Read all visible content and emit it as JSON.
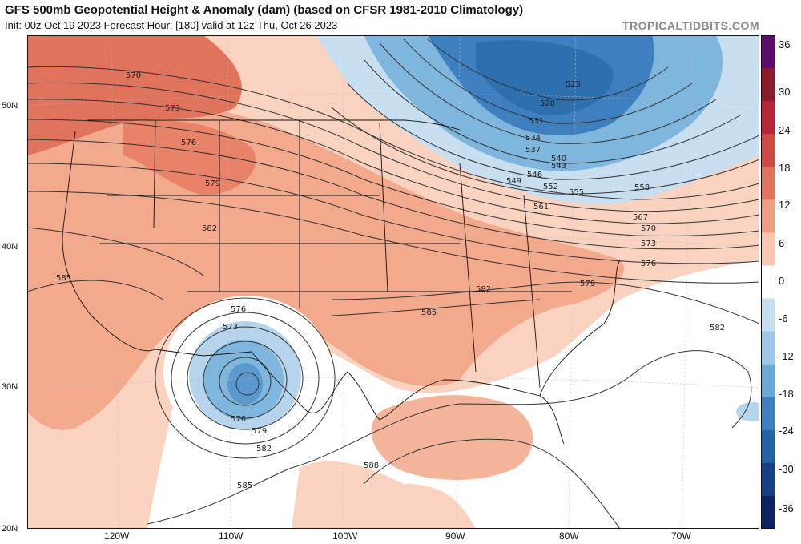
{
  "header": {
    "title": "GFS 500mb Geopotential Height & Anomaly (dam) (based on CFSR 1981-2010 Climatology)",
    "subtitle": "Init: 00z Oct 19 2023   Forecast Hour: [180]   valid at 12z Thu, Oct 26 2023",
    "credit": "TROPICALTIDBITS.COM"
  },
  "map": {
    "lat_labels": [
      "50N",
      "40N",
      "30N",
      "20N"
    ],
    "lon_labels": [
      "120W",
      "110W",
      "100W",
      "90W",
      "80W",
      "70W"
    ],
    "contour_labels": [
      "570",
      "573",
      "576",
      "579",
      "582",
      "585",
      "525",
      "528",
      "531",
      "534",
      "537",
      "540",
      "543",
      "546",
      "549",
      "552",
      "555",
      "558",
      "561",
      "567",
      "570",
      "573",
      "576",
      "579",
      "582",
      "585",
      "582",
      "576",
      "573",
      "576",
      "579",
      "582",
      "585",
      "588"
    ],
    "colors": {
      "warm_light": "#f9d2c0",
      "warm_mid": "#f2a98c",
      "warm_strong": "#e0735c",
      "cool_light": "#c7dff0",
      "cool_mid": "#7fb6dd",
      "cool_strong": "#3d7fbf",
      "contour": "#333333",
      "borders": "#111111"
    }
  },
  "colorbar": {
    "labels": [
      "36",
      "30",
      "24",
      "18",
      "12",
      "6",
      "0",
      "-6",
      "-12",
      "-18",
      "-24",
      "-30",
      "-36"
    ],
    "colors": [
      "#5a0d6a",
      "#8c1a2e",
      "#b62535",
      "#d04a45",
      "#e0735c",
      "#ee9e82",
      "#f7c6b0",
      "#ffffff",
      "#c7dff0",
      "#9cc7e6",
      "#6aa8d7",
      "#3d7fbf",
      "#2462a6",
      "#173f86",
      "#0e2460"
    ]
  }
}
